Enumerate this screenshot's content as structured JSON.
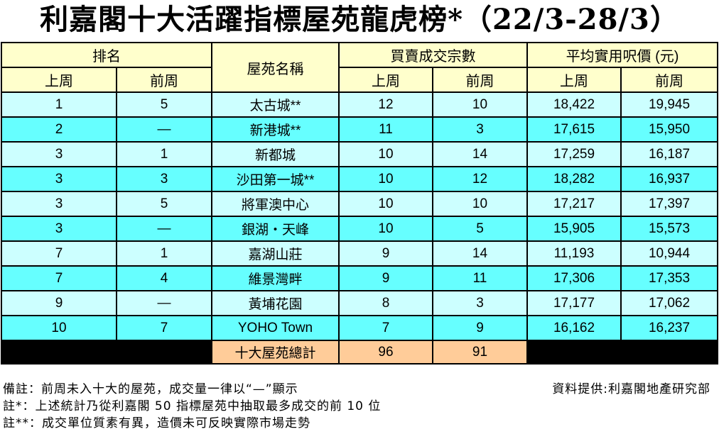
{
  "title": "利嘉閣十大活躍指標屋苑龍虎榜*（22/3-28/3）",
  "header": {
    "rank": "排名",
    "estate": "屋苑名稱",
    "transactions": "買賣成交宗數",
    "price": "平均實用呎價 (元)",
    "last_week": "上周",
    "prev_week": "前周"
  },
  "rows": [
    [
      "1",
      "5",
      "太古城**",
      "12",
      "10",
      "18,422",
      "19,945"
    ],
    [
      "2",
      "—",
      "新港城**",
      "11",
      "3",
      "17,615",
      "15,950"
    ],
    [
      "3",
      "1",
      "新都城",
      "10",
      "14",
      "17,259",
      "16,187"
    ],
    [
      "3",
      "3",
      "沙田第一城**",
      "10",
      "12",
      "18,282",
      "16,937"
    ],
    [
      "3",
      "5",
      "將軍澳中心",
      "10",
      "10",
      "17,217",
      "17,397"
    ],
    [
      "3",
      "—",
      "銀湖‧天峰",
      "10",
      "5",
      "15,905",
      "15,573"
    ],
    [
      "7",
      "1",
      "嘉湖山莊",
      "9",
      "14",
      "11,193",
      "10,944"
    ],
    [
      "7",
      "4",
      "維景灣畔",
      "9",
      "11",
      "17,306",
      "17,353"
    ],
    [
      "9",
      "—",
      "黃埔花園",
      "8",
      "3",
      "17,177",
      "17,062"
    ],
    [
      "10",
      "7",
      "YOHO Town",
      "7",
      "9",
      "16,162",
      "16,237"
    ]
  ],
  "total": {
    "label": "十大屋苑總計",
    "last_week": "96",
    "prev_week": "91"
  },
  "notes": [
    "備註：前周未入十大的屋苑，成交量一律以“—”顯示",
    "註*：上述統計乃從利嘉閣 50 指標屋苑中抽取最多成交的前 10 位",
    "註**：成交單位質素有異，造價未可反映實際市場走勢"
  ],
  "source": "資料提供:利嘉閣地產研究部"
}
